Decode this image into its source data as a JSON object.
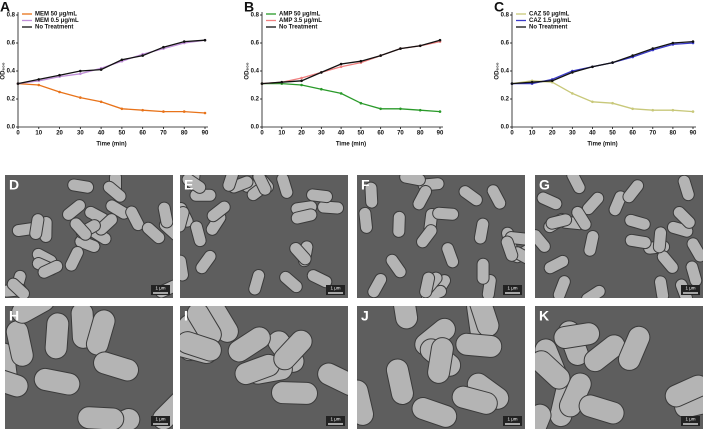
{
  "chart_data": [
    {
      "type": "line",
      "panel": "A",
      "xlabel": "Time (min)",
      "ylabel": "OD₆₀₀",
      "x": [
        0,
        10,
        20,
        30,
        40,
        50,
        60,
        70,
        80,
        90
      ],
      "series": [
        {
          "name": "MEM 50 μg/mL",
          "color": "#e8731a",
          "values": [
            0.31,
            0.3,
            0.25,
            0.21,
            0.18,
            0.13,
            0.12,
            0.11,
            0.11,
            0.1
          ]
        },
        {
          "name": "MEM 0.5 μg/mL",
          "color": "#c08fd8",
          "values": [
            0.31,
            0.33,
            0.36,
            0.38,
            0.42,
            0.47,
            0.52,
            0.56,
            0.6,
            0.62
          ]
        },
        {
          "name": "No Treatment",
          "color": "#111111",
          "values": [
            0.31,
            0.34,
            0.37,
            0.4,
            0.41,
            0.48,
            0.51,
            0.57,
            0.61,
            0.62
          ]
        }
      ],
      "xlim": [
        0,
        90
      ],
      "xticks": [
        0,
        10,
        20,
        30,
        40,
        50,
        60,
        70,
        80,
        90
      ],
      "ylim": [
        0,
        0.8
      ],
      "yticks": [
        {
          "value": 0,
          "label": "0.0"
        },
        0.2,
        0.4,
        0.6,
        0.8
      ]
    },
    {
      "type": "line",
      "panel": "B",
      "xlabel": "Time (min)",
      "ylabel": "OD₆₀₀",
      "x": [
        0,
        10,
        20,
        30,
        40,
        50,
        60,
        70,
        80,
        90
      ],
      "series": [
        {
          "name": "AMP 50 μg/mL",
          "color": "#2a9a2a",
          "values": [
            0.31,
            0.31,
            0.3,
            0.27,
            0.24,
            0.17,
            0.13,
            0.13,
            0.12,
            0.11
          ]
        },
        {
          "name": "AMP 3.5 μg/mL",
          "color": "#f08080",
          "values": [
            0.31,
            0.32,
            0.35,
            0.39,
            0.43,
            0.46,
            0.51,
            0.56,
            0.58,
            0.61
          ]
        },
        {
          "name": "No Treatment",
          "color": "#111111",
          "values": [
            0.31,
            0.32,
            0.33,
            0.39,
            0.45,
            0.47,
            0.51,
            0.56,
            0.58,
            0.62
          ]
        }
      ],
      "xlim": [
        0,
        90
      ],
      "xticks": [
        0,
        10,
        20,
        30,
        40,
        50,
        60,
        70,
        80,
        90
      ],
      "ylim": [
        0,
        0.8
      ],
      "yticks": [
        {
          "value": 0,
          "label": "0.0"
        },
        0.2,
        0.4,
        0.6,
        0.8
      ]
    },
    {
      "type": "line",
      "panel": "C",
      "xlabel": "Time (min)",
      "ylabel": "OD₆₀₀",
      "x": [
        0,
        10,
        20,
        30,
        40,
        50,
        60,
        70,
        80,
        90
      ],
      "series": [
        {
          "name": "CAZ 50 μg/mL",
          "color": "#c8c87a",
          "values": [
            0.31,
            0.33,
            0.32,
            0.24,
            0.18,
            0.17,
            0.13,
            0.12,
            0.12,
            0.11
          ]
        },
        {
          "name": "CAZ 1.5 μg/mL",
          "color": "#3a3ac8",
          "values": [
            0.31,
            0.31,
            0.34,
            0.4,
            0.43,
            0.46,
            0.5,
            0.55,
            0.59,
            0.6
          ]
        },
        {
          "name": "No Treatment",
          "color": "#111111",
          "values": [
            0.31,
            0.32,
            0.33,
            0.39,
            0.43,
            0.46,
            0.51,
            0.56,
            0.6,
            0.61
          ]
        }
      ],
      "xlim": [
        0,
        90
      ],
      "xticks": [
        0,
        10,
        20,
        30,
        40,
        50,
        60,
        70,
        80,
        90
      ],
      "ylim": [
        0,
        0.8
      ],
      "yticks": [
        {
          "value": 0,
          "label": "0.0"
        },
        0.2,
        0.4,
        0.6,
        0.8
      ]
    }
  ],
  "images": [
    {
      "panel": "D",
      "scale": "1 μm"
    },
    {
      "panel": "E",
      "scale": "1 μm"
    },
    {
      "panel": "F",
      "scale": "1 μm"
    },
    {
      "panel": "G",
      "scale": "1 μm"
    },
    {
      "panel": "H",
      "scale": "1 μm"
    },
    {
      "panel": "I",
      "scale": "1 μm"
    },
    {
      "panel": "J",
      "scale": "1 μm"
    },
    {
      "panel": "K",
      "scale": "1 μm"
    }
  ]
}
